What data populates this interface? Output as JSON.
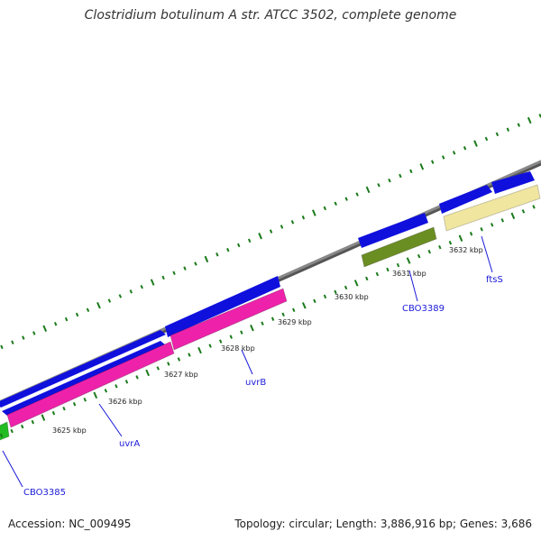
{
  "title": "Clostridium botulinum A str. ATCC 3502, complete genome",
  "ticks": [
    {
      "label": "3625 kbp"
    },
    {
      "label": "3626 kbp"
    },
    {
      "label": "3627 kbp"
    },
    {
      "label": "3628 kbp"
    },
    {
      "label": "3629 kbp"
    },
    {
      "label": "3630 kbp"
    },
    {
      "label": "3631 kbp"
    },
    {
      "label": "3632 kbp"
    }
  ],
  "genes": [
    {
      "name": "CBO3385",
      "color": "#22bb22"
    },
    {
      "name": "uvrA",
      "color": "#ee22aa"
    },
    {
      "name": "uvrB",
      "color": "#ee22aa"
    },
    {
      "name": "CBO3389",
      "color": "#6b8e23"
    },
    {
      "name": "ftsS",
      "color": "#f0e6a0"
    }
  ],
  "colors": {
    "backbone": "#888888",
    "cds_arrow": "#1010dd",
    "tick": "#1a7a1a",
    "label_link": "#1a1ad8"
  },
  "footer": {
    "accession": "Accession: NC_009495",
    "summary": "Topology: circular; Length: 3,886,916 bp; Genes: 3,686"
  }
}
